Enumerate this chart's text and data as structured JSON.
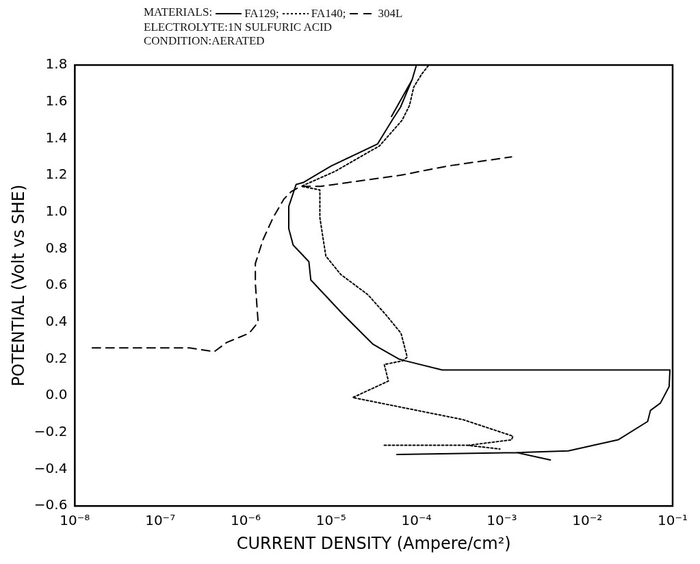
{
  "chart_data": {
    "type": "line",
    "title": "MATERIALS:",
    "annotations": [
      "ELECTROLYTE:1N SULFURIC ACID",
      "CONDITION:AERATED"
    ],
    "xlabel": "CURRENT DENSITY (Ampere/cm²)",
    "ylabel": "POTENTIAL (Volt vs SHE)",
    "log": "x",
    "legend": "top",
    "marker": "none",
    "xlim": [
      1e-08,
      0.1
    ],
    "xticks": [
      {
        "value": 1e-08,
        "label": "10⁻⁸"
      },
      {
        "value": 1e-07,
        "label": "10⁻⁷"
      },
      {
        "value": 1e-06,
        "label": "10⁻⁶"
      },
      {
        "value": 1e-05,
        "label": "10⁻⁵"
      },
      {
        "value": 0.0001,
        "label": "10⁻⁴"
      },
      {
        "value": 0.001,
        "label": "10⁻³"
      },
      {
        "value": 0.01,
        "label": "10⁻²"
      },
      {
        "value": 0.1,
        "label": "10⁻¹"
      }
    ],
    "ylim": [
      -0.6,
      1.8
    ],
    "yticks": [
      {
        "value": -0.6,
        "label": "−0.6"
      },
      {
        "value": -0.4,
        "label": "−0.4"
      },
      {
        "value": -0.2,
        "label": "−0.2"
      },
      {
        "value": 0,
        "label": "0.0"
      },
      {
        "value": 0.2,
        "label": "0.2"
      },
      {
        "value": 0.4,
        "label": "0.4"
      },
      {
        "value": 0.6,
        "label": "0.6"
      },
      {
        "value": 0.8,
        "label": "0.8"
      },
      {
        "value": 1.0,
        "label": "1.0"
      },
      {
        "value": 1.2,
        "label": "1.2"
      },
      {
        "value": 1.4,
        "label": "1.4"
      },
      {
        "value": 1.6,
        "label": "1.6"
      },
      {
        "value": 1.8,
        "label": "1.8"
      }
    ],
    "series": [
      {
        "name": "FA129;",
        "color": "#000000",
        "line_style": "solid",
        "x": [
          5.9e-05,
          0.0015,
          0.0037,
          null,
          0.0015,
          0.006,
          0.023,
          0.051,
          0.055,
          0.072,
          0.091,
          0.093,
          0.003,
          0.0002,
          7.4e-05,
          6.2e-05,
          3.1e-05,
          1.4e-05,
          5.8e-06,
          5.5e-06,
          3.6e-06,
          3.2e-06,
          3.2e-06,
          3.9e-06,
          4.7e-06,
          1e-05,
          3.5e-05,
          5.2e-05,
          6.5e-05,
          8.9e-05,
          0.0001,
          null,
          5.1e-05,
          8.9e-05
        ],
        "values": [
          -0.32,
          -0.31,
          -0.35,
          null,
          -0.31,
          -0.3,
          -0.24,
          -0.14,
          -0.08,
          -0.04,
          0.05,
          0.14,
          0.14,
          0.14,
          0.19,
          0.2,
          0.28,
          0.44,
          0.63,
          0.73,
          0.82,
          0.91,
          1.03,
          1.15,
          1.16,
          1.25,
          1.37,
          1.5,
          1.57,
          1.72,
          1.8,
          null,
          1.52,
          1.72
        ]
      },
      {
        "name": "FA140;",
        "color": "#000000",
        "line_style": "dotted",
        "x": [
          4.2e-05,
          0.0004,
          0.00095,
          null,
          0.0004,
          0.0013,
          0.00135,
          0.00035,
          1.8e-05,
          4.7e-05,
          4.2e-05,
          6.9e-05,
          7.8e-05,
          6.6e-05,
          4.4e-05,
          2.7e-05,
          1.3e-05,
          8.7e-06,
          8.3e-06,
          7.4e-06,
          7.4e-06,
          4.5e-06,
          1.1e-05,
          3.7e-05,
          6.8e-05,
          8.3e-05,
          9.3e-05,
          0.000115,
          0.00014
        ],
        "values": [
          -0.27,
          -0.27,
          -0.29,
          null,
          -0.27,
          -0.24,
          -0.22,
          -0.13,
          -0.01,
          0.08,
          0.17,
          0.19,
          0.21,
          0.34,
          0.44,
          0.55,
          0.66,
          0.76,
          0.82,
          0.97,
          1.12,
          1.14,
          1.22,
          1.36,
          1.5,
          1.58,
          1.68,
          1.75,
          1.8
        ]
      },
      {
        "name": "304L",
        "color": "#000000",
        "line_style": "dashed",
        "x": [
          1.6e-08,
          2.2e-07,
          4.3e-07,
          6e-07,
          1.1e-06,
          1.4e-06,
          1.3e-06,
          1.3e-06,
          1.6e-06,
          2.1e-06,
          2.8e-06,
          3.4e-06,
          4.4e-06,
          7.6e-06,
          1.1e-05,
          6.5e-05,
          0.00023,
          0.0013
        ],
        "values": [
          0.26,
          0.26,
          0.24,
          0.29,
          0.34,
          0.4,
          0.61,
          0.72,
          0.85,
          0.97,
          1.07,
          1.11,
          1.14,
          1.14,
          1.15,
          1.2,
          1.25,
          1.3
        ]
      }
    ]
  }
}
